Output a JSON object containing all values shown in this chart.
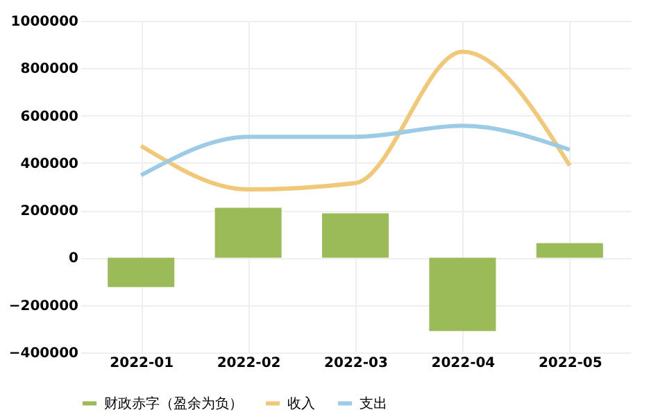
{
  "chart_data": {
    "type": "bar",
    "categories": [
      "2022-01",
      "2022-02",
      "2022-03",
      "2022-04",
      "2022-05"
    ],
    "series": [
      {
        "name": "财政赤字（盈余为负）",
        "color": "#9bbb59",
        "values": [
          -124000,
          211000,
          187000,
          -310000,
          61000
        ]
      },
      {
        "name": "收入",
        "type": "line",
        "color": "#f0c878",
        "values": [
          472000,
          288000,
          315000,
          870000,
          389000
        ]
      },
      {
        "name": "支出",
        "type": "line",
        "color": "#9ccbe6",
        "values": [
          348000,
          510000,
          510000,
          557000,
          456000
        ]
      }
    ],
    "ylim": [
      -400000,
      1000000
    ],
    "yticks": [
      -400000,
      -200000,
      0,
      200000,
      400000,
      600000,
      800000,
      1000000
    ],
    "grid": true,
    "legend": "bottom",
    "marker": "none",
    "line_style": "solid"
  }
}
